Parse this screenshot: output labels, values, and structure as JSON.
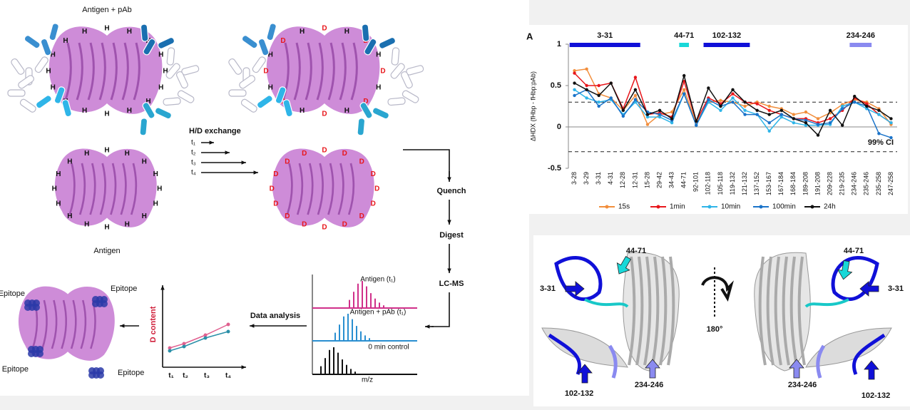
{
  "diagram": {
    "antigen_pab": "Antigen + pAb",
    "antigen": "Antigen",
    "hd_exchange": "H/D exchange",
    "times": [
      "t₁",
      "t₂",
      "t₃",
      "t₄"
    ],
    "atom_h": "H",
    "atom_d": "D",
    "steps": [
      "Quench",
      "Digest",
      "LC-MS"
    ],
    "data_analysis": "Data analysis",
    "spectra": [
      "Antigen (t₁)",
      "Antigen + pAb (t₁)",
      "0 min control"
    ],
    "mz": "m/z",
    "d_content": "D content",
    "epitope": "Epitope"
  },
  "chart_data": {
    "type": "line",
    "panel": "A",
    "ylabel": "ΔHDX (fHbp - fHbp:pAb)",
    "categories": [
      "3-28",
      "3-29",
      "3-31",
      "4-31",
      "12-28",
      "12-31",
      "15-28",
      "29-42",
      "34-43",
      "44-71",
      "92-101",
      "102-118",
      "105-118",
      "119-132",
      "121-132",
      "137-152",
      "153-167",
      "167-184",
      "168-184",
      "189-208",
      "191-208",
      "209-228",
      "219-235",
      "234-246",
      "235-246",
      "235-258",
      "247-258"
    ],
    "series": [
      {
        "name": "15s",
        "color": "#f28e3c",
        "values": [
          0.68,
          0.7,
          0.4,
          0.35,
          0.2,
          0.38,
          0.03,
          0.15,
          0.18,
          0.45,
          0.05,
          0.3,
          0.32,
          0.3,
          0.25,
          0.3,
          0.25,
          0.22,
          0.15,
          0.18,
          0.1,
          0.17,
          0.27,
          0.33,
          0.3,
          0.22,
          0.03
        ]
      },
      {
        "name": "1min",
        "color": "#e8161b",
        "values": [
          0.65,
          0.5,
          0.5,
          0.53,
          0.22,
          0.6,
          0.15,
          0.17,
          0.12,
          0.55,
          0.07,
          0.35,
          0.28,
          0.4,
          0.3,
          0.28,
          0.2,
          0.15,
          0.1,
          0.1,
          0.05,
          0.1,
          0.2,
          0.35,
          0.28,
          0.15,
          0.05
        ]
      },
      {
        "name": "10min",
        "color": "#2fb5e8",
        "values": [
          0.45,
          0.35,
          0.3,
          0.33,
          0.15,
          0.3,
          0.12,
          0.12,
          0.05,
          0.4,
          0.02,
          0.3,
          0.2,
          0.35,
          0.2,
          0.15,
          -0.05,
          0.12,
          0.05,
          0.02,
          0.02,
          0.03,
          0.25,
          0.3,
          0.22,
          0.15,
          0.05
        ]
      },
      {
        "name": "100min",
        "color": "#1a73c9",
        "values": [
          0.38,
          0.45,
          0.25,
          0.35,
          0.13,
          0.33,
          0.18,
          0.15,
          0.08,
          0.4,
          0.02,
          0.33,
          0.25,
          0.3,
          0.15,
          0.15,
          0.05,
          0.15,
          0.1,
          0.08,
          0.03,
          0.05,
          0.22,
          0.3,
          0.25,
          -0.08,
          -0.13
        ]
      },
      {
        "name": "24h",
        "color": "#111111",
        "values": [
          0.53,
          0.45,
          0.38,
          0.53,
          0.2,
          0.45,
          0.15,
          0.2,
          0.1,
          0.62,
          0.07,
          0.47,
          0.25,
          0.45,
          0.3,
          0.2,
          0.15,
          0.2,
          0.1,
          0.05,
          -0.1,
          0.2,
          0.02,
          0.37,
          0.25,
          0.2,
          0.1
        ]
      }
    ],
    "ylim": [
      -0.5,
      1
    ],
    "yticks": [
      -0.5,
      0,
      0.5,
      1
    ],
    "ci_bounds": [
      -0.3,
      0.3
    ],
    "ci_label": "99% CI",
    "regions": [
      {
        "label": "3-31",
        "color": "#1010d8"
      },
      {
        "label": "44-71",
        "color": "#18d8d8"
      },
      {
        "label": "102-132",
        "color": "#1010d8"
      },
      {
        "label": "234-246",
        "color": "#8a8af0"
      }
    ]
  },
  "structure": {
    "rotation": "180°"
  }
}
